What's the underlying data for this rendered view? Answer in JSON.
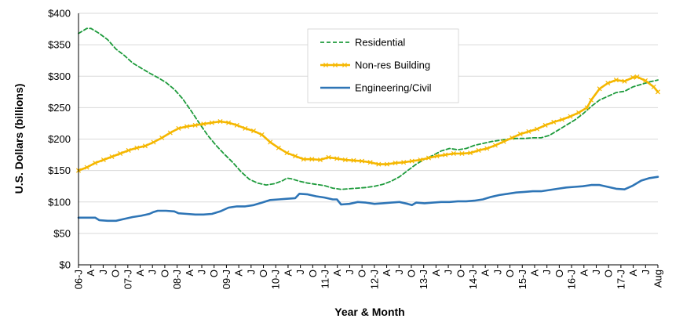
{
  "chart_data": {
    "type": "line",
    "xlabel": "Year & Month",
    "ylabel": "U.S. Dollars (billions)",
    "ylim": [
      0,
      400
    ],
    "y_ticks": [
      "$0",
      "$50",
      "$100",
      "$150",
      "$200",
      "$250",
      "$300",
      "$350",
      "$400"
    ],
    "x_tick_labels": [
      "06-J",
      "A",
      "J",
      "O",
      "07-J",
      "A",
      "J",
      "O",
      "08-J",
      "A",
      "J",
      "O",
      "09-J",
      "A",
      "J",
      "O",
      "10-J",
      "A",
      "J",
      "O",
      "11-J",
      "A",
      "J",
      "O",
      "12-J",
      "A",
      "J",
      "O",
      "13-J",
      "A",
      "J",
      "O",
      "14-J",
      "A",
      "J",
      "O",
      "15-J",
      "A",
      "J",
      "O",
      "16-J",
      "A",
      "J",
      "O",
      "17-J",
      "A",
      "J",
      "Aug"
    ],
    "x_first_month": "2006-01",
    "x_last_month": "2017-08",
    "grid": "horizontal",
    "legend_position": "top-center",
    "series": [
      {
        "name": "Residential",
        "color": "#1e9b3c",
        "style": "dashed",
        "points": [
          [
            "2006-01",
            368
          ],
          [
            "2006-03",
            376
          ],
          [
            "2006-04",
            376
          ],
          [
            "2006-06",
            368
          ],
          [
            "2006-08",
            358
          ],
          [
            "2006-10",
            343
          ],
          [
            "2006-12",
            333
          ],
          [
            "2007-02",
            321
          ],
          [
            "2007-04",
            313
          ],
          [
            "2007-06",
            305
          ],
          [
            "2007-08",
            298
          ],
          [
            "2007-10",
            290
          ],
          [
            "2007-12",
            279
          ],
          [
            "2008-02",
            264
          ],
          [
            "2008-04",
            245
          ],
          [
            "2008-06",
            225
          ],
          [
            "2008-08",
            206
          ],
          [
            "2008-10",
            190
          ],
          [
            "2008-12",
            176
          ],
          [
            "2009-02",
            163
          ],
          [
            "2009-04",
            148
          ],
          [
            "2009-06",
            136
          ],
          [
            "2009-08",
            130
          ],
          [
            "2009-10",
            127
          ],
          [
            "2009-12",
            129
          ],
          [
            "2010-02",
            134
          ],
          [
            "2010-03",
            138
          ],
          [
            "2010-04",
            137
          ],
          [
            "2010-06",
            133
          ],
          [
            "2010-08",
            130
          ],
          [
            "2010-10",
            128
          ],
          [
            "2010-12",
            126
          ],
          [
            "2011-02",
            122
          ],
          [
            "2011-04",
            120
          ],
          [
            "2011-06",
            121
          ],
          [
            "2011-08",
            122
          ],
          [
            "2011-10",
            123
          ],
          [
            "2011-12",
            125
          ],
          [
            "2012-02",
            128
          ],
          [
            "2012-04",
            133
          ],
          [
            "2012-06",
            140
          ],
          [
            "2012-08",
            150
          ],
          [
            "2012-10",
            160
          ],
          [
            "2012-12",
            168
          ],
          [
            "2013-02",
            174
          ],
          [
            "2013-04",
            181
          ],
          [
            "2013-06",
            185
          ],
          [
            "2013-07",
            184
          ],
          [
            "2013-08",
            183
          ],
          [
            "2013-10",
            185
          ],
          [
            "2013-12",
            190
          ],
          [
            "2014-02",
            193
          ],
          [
            "2014-04",
            196
          ],
          [
            "2014-06",
            198
          ],
          [
            "2014-08",
            200
          ],
          [
            "2014-10",
            201
          ],
          [
            "2014-12",
            201
          ],
          [
            "2015-02",
            202
          ],
          [
            "2015-04",
            202
          ],
          [
            "2015-06",
            206
          ],
          [
            "2015-08",
            214
          ],
          [
            "2015-10",
            222
          ],
          [
            "2015-12",
            230
          ],
          [
            "2016-02",
            240
          ],
          [
            "2016-04",
            252
          ],
          [
            "2016-06",
            262
          ],
          [
            "2016-08",
            268
          ],
          [
            "2016-10",
            274
          ],
          [
            "2016-12",
            276
          ],
          [
            "2017-02",
            283
          ],
          [
            "2017-04",
            287
          ],
          [
            "2017-06",
            291
          ],
          [
            "2017-08",
            294
          ]
        ]
      },
      {
        "name": "Non-res Building",
        "color": "#f5b700",
        "style": "solid-markers",
        "points": [
          [
            "2006-01",
            150
          ],
          [
            "2006-03",
            155
          ],
          [
            "2006-05",
            162
          ],
          [
            "2006-07",
            167
          ],
          [
            "2006-09",
            172
          ],
          [
            "2006-11",
            177
          ],
          [
            "2007-01",
            182
          ],
          [
            "2007-03",
            186
          ],
          [
            "2007-05",
            189
          ],
          [
            "2007-07",
            195
          ],
          [
            "2007-09",
            202
          ],
          [
            "2007-11",
            210
          ],
          [
            "2008-01",
            217
          ],
          [
            "2008-03",
            220
          ],
          [
            "2008-05",
            222
          ],
          [
            "2008-07",
            224
          ],
          [
            "2008-09",
            226
          ],
          [
            "2008-11",
            228
          ],
          [
            "2009-01",
            226
          ],
          [
            "2009-03",
            222
          ],
          [
            "2009-05",
            217
          ],
          [
            "2009-07",
            213
          ],
          [
            "2009-09",
            207
          ],
          [
            "2009-11",
            195
          ],
          [
            "2010-01",
            186
          ],
          [
            "2010-03",
            178
          ],
          [
            "2010-05",
            173
          ],
          [
            "2010-07",
            168
          ],
          [
            "2010-09",
            168
          ],
          [
            "2010-11",
            167
          ],
          [
            "2011-01",
            171
          ],
          [
            "2011-03",
            169
          ],
          [
            "2011-05",
            167
          ],
          [
            "2011-07",
            166
          ],
          [
            "2011-09",
            165
          ],
          [
            "2011-11",
            163
          ],
          [
            "2012-01",
            160
          ],
          [
            "2012-03",
            160
          ],
          [
            "2012-05",
            162
          ],
          [
            "2012-07",
            163
          ],
          [
            "2012-09",
            165
          ],
          [
            "2012-11",
            167
          ],
          [
            "2013-01",
            170
          ],
          [
            "2013-03",
            173
          ],
          [
            "2013-05",
            175
          ],
          [
            "2013-07",
            177
          ],
          [
            "2013-09",
            177
          ],
          [
            "2013-11",
            178
          ],
          [
            "2014-01",
            182
          ],
          [
            "2014-03",
            185
          ],
          [
            "2014-05",
            190
          ],
          [
            "2014-07",
            196
          ],
          [
            "2014-09",
            202
          ],
          [
            "2014-11",
            208
          ],
          [
            "2015-01",
            212
          ],
          [
            "2015-03",
            216
          ],
          [
            "2015-05",
            222
          ],
          [
            "2015-07",
            227
          ],
          [
            "2015-09",
            231
          ],
          [
            "2015-11",
            236
          ],
          [
            "2016-01",
            242
          ],
          [
            "2016-03",
            250
          ],
          [
            "2016-04",
            262
          ],
          [
            "2016-06",
            280
          ],
          [
            "2016-08",
            289
          ],
          [
            "2016-10",
            294
          ],
          [
            "2016-12",
            292
          ],
          [
            "2017-02",
            298
          ],
          [
            "2017-03",
            299
          ],
          [
            "2017-05",
            293
          ],
          [
            "2017-07",
            283
          ],
          [
            "2017-08",
            275
          ]
        ]
      },
      {
        "name": "Engineering/Civil",
        "color": "#2e75b6",
        "style": "solid",
        "points": [
          [
            "2006-01",
            75
          ],
          [
            "2006-03",
            75
          ],
          [
            "2006-05",
            75
          ],
          [
            "2006-06",
            71
          ],
          [
            "2006-08",
            70
          ],
          [
            "2006-10",
            70
          ],
          [
            "2006-12",
            73
          ],
          [
            "2007-02",
            76
          ],
          [
            "2007-04",
            78
          ],
          [
            "2007-06",
            81
          ],
          [
            "2007-07",
            84
          ],
          [
            "2007-08",
            86
          ],
          [
            "2007-10",
            86
          ],
          [
            "2007-12",
            85
          ],
          [
            "2008-01",
            82
          ],
          [
            "2008-03",
            81
          ],
          [
            "2008-05",
            80
          ],
          [
            "2008-07",
            80
          ],
          [
            "2008-09",
            81
          ],
          [
            "2008-11",
            85
          ],
          [
            "2009-01",
            91
          ],
          [
            "2009-03",
            93
          ],
          [
            "2009-05",
            93
          ],
          [
            "2009-07",
            95
          ],
          [
            "2009-09",
            99
          ],
          [
            "2009-11",
            103
          ],
          [
            "2010-01",
            104
          ],
          [
            "2010-03",
            105
          ],
          [
            "2010-05",
            106
          ],
          [
            "2010-06",
            113
          ],
          [
            "2010-08",
            112
          ],
          [
            "2010-10",
            109
          ],
          [
            "2010-12",
            107
          ],
          [
            "2011-02",
            104
          ],
          [
            "2011-03",
            104
          ],
          [
            "2011-04",
            96
          ],
          [
            "2011-06",
            97
          ],
          [
            "2011-08",
            100
          ],
          [
            "2011-10",
            99
          ],
          [
            "2011-12",
            97
          ],
          [
            "2012-02",
            98
          ],
          [
            "2012-04",
            99
          ],
          [
            "2012-06",
            100
          ],
          [
            "2012-08",
            97
          ],
          [
            "2012-09",
            95
          ],
          [
            "2012-10",
            99
          ],
          [
            "2012-12",
            98
          ],
          [
            "2013-02",
            99
          ],
          [
            "2013-04",
            100
          ],
          [
            "2013-06",
            100
          ],
          [
            "2013-08",
            101
          ],
          [
            "2013-10",
            101
          ],
          [
            "2013-12",
            102
          ],
          [
            "2014-02",
            104
          ],
          [
            "2014-04",
            108
          ],
          [
            "2014-06",
            111
          ],
          [
            "2014-08",
            113
          ],
          [
            "2014-10",
            115
          ],
          [
            "2014-12",
            116
          ],
          [
            "2015-02",
            117
          ],
          [
            "2015-04",
            117
          ],
          [
            "2015-06",
            119
          ],
          [
            "2015-08",
            121
          ],
          [
            "2015-10",
            123
          ],
          [
            "2015-12",
            124
          ],
          [
            "2016-02",
            125
          ],
          [
            "2016-04",
            127
          ],
          [
            "2016-06",
            127
          ],
          [
            "2016-08",
            124
          ],
          [
            "2016-10",
            121
          ],
          [
            "2016-12",
            120
          ],
          [
            "2017-02",
            126
          ],
          [
            "2017-04",
            134
          ],
          [
            "2017-06",
            138
          ],
          [
            "2017-08",
            140
          ]
        ]
      }
    ]
  }
}
